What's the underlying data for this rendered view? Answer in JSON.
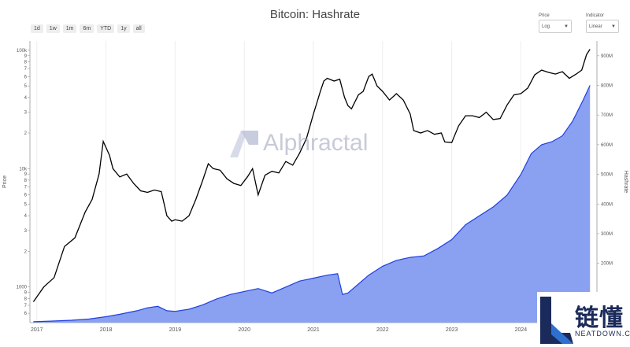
{
  "title": "Bitcoin: Hashrate",
  "range_buttons": [
    "1d",
    "1w",
    "1m",
    "6m",
    "YTD",
    "1y",
    "all"
  ],
  "controls": {
    "price": {
      "label": "Price",
      "value": "Log"
    },
    "indicator": {
      "label": "Indicator",
      "value": "Linear"
    }
  },
  "watermark": "Alphractal",
  "logo": {
    "cn": "链懂",
    "en": "NEATDOWN.COM"
  },
  "colors": {
    "price_line": "#000000",
    "hashrate_line": "#2040e0",
    "hashrate_fill": "#8aa0f0"
  },
  "chart_data": {
    "type": "line",
    "title": "Bitcoin: Hashrate",
    "xlabel": "",
    "x_ticks": [
      "2017",
      "2018",
      "2019",
      "2020",
      "2021",
      "2022",
      "2023",
      "2024"
    ],
    "y_left": {
      "label": "Price",
      "scale": "log",
      "range": [
        500,
        120000
      ],
      "ticks": [
        {
          "v": 600,
          "t": "6"
        },
        {
          "v": 700,
          "t": "7"
        },
        {
          "v": 800,
          "t": "8"
        },
        {
          "v": 900,
          "t": "9"
        },
        {
          "v": 1000,
          "t": "1000"
        },
        {
          "v": 2000,
          "t": "2"
        },
        {
          "v": 3000,
          "t": "3"
        },
        {
          "v": 4000,
          "t": "4"
        },
        {
          "v": 5000,
          "t": "5"
        },
        {
          "v": 6000,
          "t": "6"
        },
        {
          "v": 7000,
          "t": "7"
        },
        {
          "v": 8000,
          "t": "8"
        },
        {
          "v": 9000,
          "t": "9"
        },
        {
          "v": 10000,
          "t": "10k"
        },
        {
          "v": 20000,
          "t": "2"
        },
        {
          "v": 30000,
          "t": "3"
        },
        {
          "v": 40000,
          "t": "4"
        },
        {
          "v": 50000,
          "t": "5"
        },
        {
          "v": 60000,
          "t": "6"
        },
        {
          "v": 70000,
          "t": "7"
        },
        {
          "v": 80000,
          "t": "8"
        },
        {
          "v": 90000,
          "t": "9"
        },
        {
          "v": 100000,
          "t": "100k"
        }
      ]
    },
    "y_right": {
      "label": "Hashrate",
      "scale": "linear",
      "range": [
        0,
        950000000
      ],
      "ticks": [
        {
          "v": 200000000,
          "t": "200M"
        },
        {
          "v": 300000000,
          "t": "300M"
        },
        {
          "v": 400000000,
          "t": "400M"
        },
        {
          "v": 500000000,
          "t": "500M"
        },
        {
          "v": 600000000,
          "t": "600M"
        },
        {
          "v": 700000000,
          "t": "700M"
        },
        {
          "v": 800000000,
          "t": "800M"
        },
        {
          "v": 900000000,
          "t": "900M"
        }
      ]
    },
    "x_range": [
      2016.9,
      2025.1
    ],
    "series": [
      {
        "name": "Price",
        "axis": "left",
        "x": [
          2016.95,
          2017.1,
          2017.25,
          2017.4,
          2017.55,
          2017.7,
          2017.8,
          2017.9,
          2017.96,
          2018.05,
          2018.1,
          2018.2,
          2018.3,
          2018.4,
          2018.5,
          2018.6,
          2018.7,
          2018.8,
          2018.88,
          2018.95,
          2019.0,
          2019.1,
          2019.2,
          2019.3,
          2019.4,
          2019.48,
          2019.55,
          2019.65,
          2019.75,
          2019.85,
          2019.95,
          2020.05,
          2020.12,
          2020.2,
          2020.3,
          2020.4,
          2020.5,
          2020.6,
          2020.7,
          2020.8,
          2020.9,
          2021.0,
          2021.05,
          2021.1,
          2021.15,
          2021.2,
          2021.3,
          2021.38,
          2021.45,
          2021.5,
          2021.55,
          2021.65,
          2021.72,
          2021.8,
          2021.85,
          2021.92,
          2022.0,
          2022.1,
          2022.2,
          2022.3,
          2022.4,
          2022.45,
          2022.55,
          2022.65,
          2022.75,
          2022.85,
          2022.9,
          2023.0,
          2023.1,
          2023.2,
          2023.3,
          2023.4,
          2023.5,
          2023.6,
          2023.7,
          2023.8,
          2023.9,
          2024.0,
          2024.1,
          2024.2,
          2024.3,
          2024.4,
          2024.5,
          2024.6,
          2024.7,
          2024.8,
          2024.88,
          2024.95,
          2025.0
        ],
        "y": [
          750,
          1000,
          1200,
          2200,
          2600,
          4300,
          5500,
          9000,
          17000,
          13000,
          10000,
          8500,
          9000,
          7500,
          6500,
          6300,
          6600,
          6400,
          4000,
          3600,
          3700,
          3600,
          4000,
          5500,
          8000,
          11000,
          10000,
          9700,
          8200,
          7500,
          7200,
          8600,
          10000,
          6000,
          8800,
          9500,
          9200,
          11500,
          10700,
          13500,
          18000,
          29000,
          36000,
          45000,
          55000,
          58000,
          55000,
          57000,
          40000,
          34000,
          32000,
          42000,
          45000,
          60000,
          63000,
          50000,
          45000,
          38000,
          43000,
          38000,
          29000,
          21000,
          20000,
          21000,
          19500,
          20000,
          16800,
          16600,
          23000,
          28000,
          28000,
          27000,
          30000,
          26000,
          26500,
          34500,
          42000,
          43000,
          48000,
          62000,
          68000,
          65000,
          63000,
          66000,
          58000,
          63000,
          68000,
          92000,
          102000
        ]
      },
      {
        "name": "Hashrate",
        "axis": "right",
        "x": [
          2016.95,
          2017.2,
          2017.5,
          2017.75,
          2018.0,
          2018.2,
          2018.45,
          2018.6,
          2018.75,
          2018.88,
          2019.0,
          2019.2,
          2019.4,
          2019.6,
          2019.8,
          2020.0,
          2020.2,
          2020.4,
          2020.6,
          2020.8,
          2021.0,
          2021.2,
          2021.35,
          2021.42,
          2021.5,
          2021.65,
          2021.8,
          2022.0,
          2022.2,
          2022.4,
          2022.6,
          2022.8,
          2023.0,
          2023.2,
          2023.4,
          2023.6,
          2023.8,
          2024.0,
          2024.15,
          2024.3,
          2024.45,
          2024.6,
          2024.75,
          2024.9,
          2025.0
        ],
        "y": [
          3000000,
          5000000,
          8000000,
          12000000,
          20000000,
          28000000,
          40000000,
          50000000,
          55000000,
          40000000,
          38000000,
          45000000,
          60000000,
          80000000,
          95000000,
          105000000,
          115000000,
          100000000,
          120000000,
          140000000,
          150000000,
          160000000,
          165000000,
          95000000,
          100000000,
          130000000,
          160000000,
          190000000,
          210000000,
          220000000,
          225000000,
          250000000,
          280000000,
          330000000,
          360000000,
          390000000,
          430000000,
          500000000,
          570000000,
          600000000,
          610000000,
          630000000,
          680000000,
          750000000,
          800000000
        ]
      }
    ],
    "legend": "none",
    "grid": "vertical"
  }
}
